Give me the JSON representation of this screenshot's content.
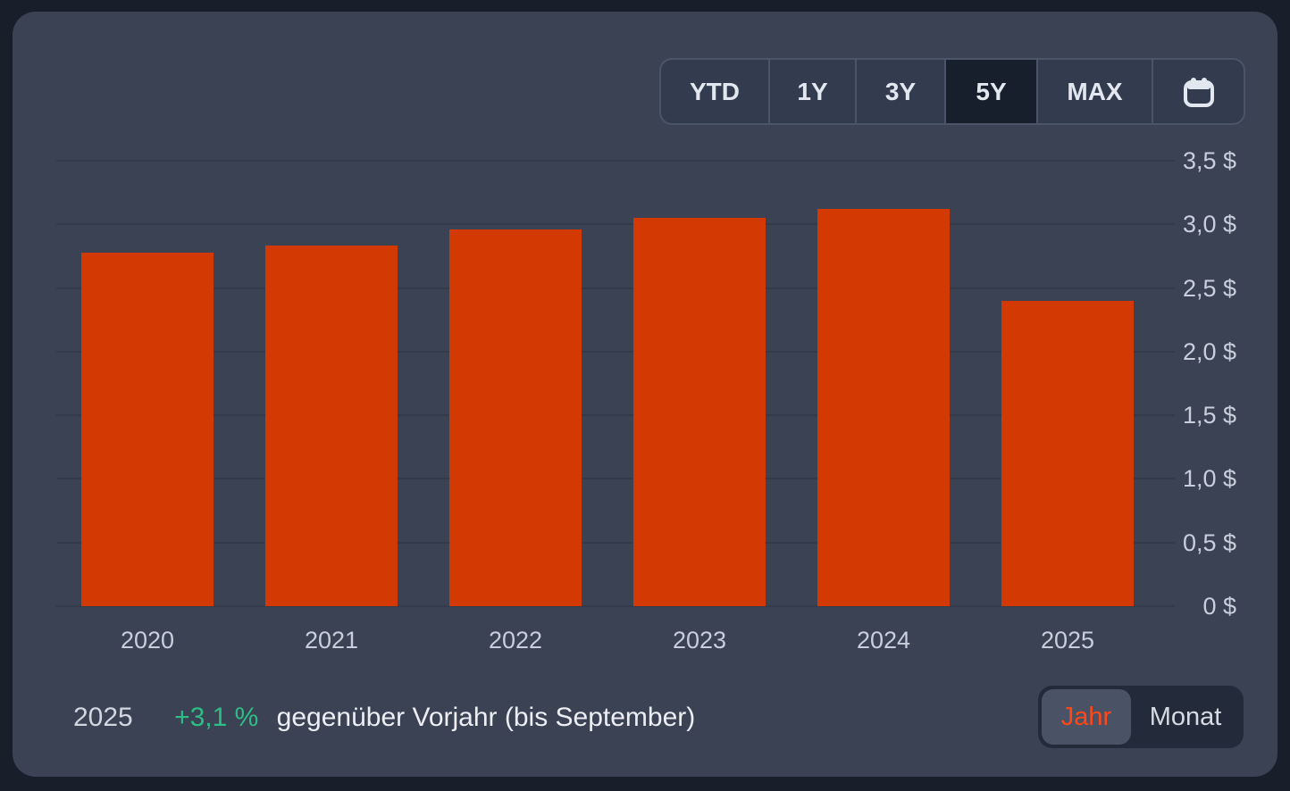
{
  "range_selector": {
    "buttons": [
      {
        "label": "YTD",
        "selected": false
      },
      {
        "label": "1Y",
        "selected": false
      },
      {
        "label": "3Y",
        "selected": false
      },
      {
        "label": "5Y",
        "selected": true
      },
      {
        "label": "MAX",
        "selected": false
      }
    ],
    "calendar_icon": "calendar-icon"
  },
  "chart_data": {
    "type": "bar",
    "title": "",
    "categories": [
      "2020",
      "2021",
      "2022",
      "2023",
      "2024",
      "2025"
    ],
    "values": [
      2.78,
      2.83,
      2.96,
      3.05,
      3.12,
      2.4
    ],
    "unit": "$",
    "xlabel": "",
    "ylabel": "",
    "ylim": [
      0,
      3.5
    ],
    "ytick_step": 0.5,
    "ytick_labels": [
      "0 $",
      "0,5 $",
      "1,0 $",
      "1,5 $",
      "2,0 $",
      "2,5 $",
      "3,0 $",
      "3,5 $"
    ],
    "grid": "horizontal",
    "legend_position": "none",
    "bar_color": "#d33902",
    "axis_label_color": "#c9cedb",
    "gridline_color": "#333b4b"
  },
  "summary": {
    "year": "2025",
    "change": "+3,1 %",
    "change_color": "#2ebd85",
    "description": "gegenüber Vorjahr (bis September)"
  },
  "granularity_toggle": {
    "options": [
      {
        "label": "Jahr",
        "selected": true
      },
      {
        "label": "Monat",
        "selected": false
      }
    ]
  },
  "colors": {
    "page_background": "#191e2b",
    "card_background": "#3a4254",
    "bar": "#d33902",
    "positive_change": "#2ebd85",
    "active_toggle_text": "#ff4818",
    "selected_range_background": "#171e2c"
  }
}
